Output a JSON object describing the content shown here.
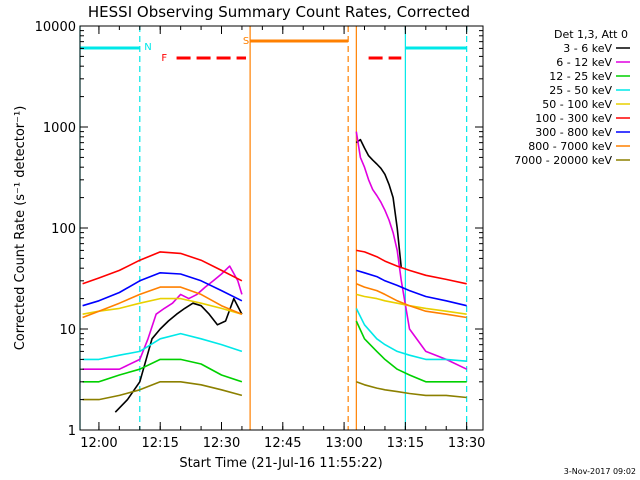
{
  "chart_data": {
    "type": "line",
    "title": "HESSI Observing Summary Count Rates, Corrected",
    "xlabel": "Start Time (21-Jul-16 11:55:22)",
    "ylabel": "Corrected Count Rate (s⁻¹ detector⁻¹)",
    "xaxis": {
      "start": "11:55:22",
      "end": "13:34:00",
      "ticks": [
        "12:00",
        "12:15",
        "12:30",
        "12:45",
        "13:00",
        "13:15",
        "13:30"
      ]
    },
    "yaxis": {
      "scale": "log",
      "ylim": [
        1,
        10000
      ],
      "ticks": [
        "1",
        "10",
        "100",
        "1000",
        "10000"
      ]
    },
    "legend": {
      "position": "right",
      "header": "Det 1,3, Att 0",
      "entries": [
        {
          "label": "3 - 6 keV",
          "color": "#000000"
        },
        {
          "label": "6 - 12 keV",
          "color": "#e000e0"
        },
        {
          "label": "12 - 25 keV",
          "color": "#00d000"
        },
        {
          "label": "25 - 50 keV",
          "color": "#00e8e8"
        },
        {
          "label": "50 - 100 keV",
          "color": "#e8d000"
        },
        {
          "label": "100 - 300 keV",
          "color": "#ff0000"
        },
        {
          "label": "300 - 800 keV",
          "color": "#0000ff"
        },
        {
          "label": "800 - 7000 keV",
          "color": "#ff8000"
        },
        {
          "label": "7000 - 20000 keV",
          "color": "#8c8000"
        }
      ]
    },
    "markers": {
      "N": "N",
      "F": "F",
      "S": "S"
    },
    "series": [
      {
        "name": "3 - 6 keV",
        "color": "#000000",
        "segments": [
          {
            "x": [
              "12:04",
              "12:07",
              "12:10",
              "12:13",
              "12:15",
              "12:17",
              "12:19",
              "12:21",
              "12:23",
              "12:25",
              "12:27",
              "12:29",
              "12:31",
              "12:33",
              "12:35"
            ],
            "y": [
              1.5,
              2,
              3,
              8,
              10,
              12,
              14,
              16,
              18,
              17,
              14,
              11,
              12,
              20,
              14
            ]
          },
          {
            "x": [
              "13:03",
              "13:04",
              "13:05",
              "13:06",
              "13:07",
              "13:08",
              "13:09",
              "13:10",
              "13:11",
              "13:12",
              "13:13",
              "13:14"
            ],
            "y": [
              700,
              750,
              620,
              520,
              470,
              430,
              390,
              340,
              270,
              200,
              100,
              40
            ]
          }
        ]
      },
      {
        "name": "6 - 12 keV",
        "color": "#e000e0",
        "segments": [
          {
            "x": [
              "11:56",
              "12:00",
              "12:05",
              "12:10",
              "12:12",
              "12:14",
              "12:16",
              "12:18",
              "12:20",
              "12:22",
              "12:24",
              "12:26",
              "12:28",
              "12:30",
              "12:32",
              "12:34",
              "12:35"
            ],
            "y": [
              4,
              4,
              4,
              5,
              8,
              14,
              16,
              18,
              22,
              20,
              22,
              26,
              30,
              35,
              42,
              30,
              22
            ]
          },
          {
            "x": [
              "13:03",
              "13:04",
              "13:05",
              "13:06",
              "13:07",
              "13:08",
              "13:09",
              "13:10",
              "13:11",
              "13:12",
              "13:13",
              "13:14",
              "13:16",
              "13:20",
              "13:25",
              "13:30"
            ],
            "y": [
              900,
              500,
              400,
              300,
              240,
              210,
              180,
              150,
              120,
              90,
              60,
              30,
              10,
              6,
              5,
              4
            ]
          }
        ]
      },
      {
        "name": "12 - 25 keV",
        "color": "#00d000",
        "segments": [
          {
            "x": [
              "11:56",
              "12:00",
              "12:05",
              "12:10",
              "12:15",
              "12:20",
              "12:25",
              "12:30",
              "12:35"
            ],
            "y": [
              3,
              3,
              3.5,
              4,
              5,
              5,
              4.5,
              3.5,
              3
            ]
          },
          {
            "x": [
              "13:03",
              "13:05",
              "13:08",
              "13:10",
              "13:13",
              "13:16",
              "13:20",
              "13:25",
              "13:30"
            ],
            "y": [
              12,
              8,
              6,
              5,
              4,
              3.5,
              3,
              3,
              3
            ]
          }
        ]
      },
      {
        "name": "25 - 50 keV",
        "color": "#00e8e8",
        "segments": [
          {
            "x": [
              "11:56",
              "12:00",
              "12:05",
              "12:10",
              "12:15",
              "12:20",
              "12:25",
              "12:30",
              "12:35"
            ],
            "y": [
              5,
              5,
              5.5,
              6,
              8,
              9,
              8,
              7,
              6
            ]
          },
          {
            "x": [
              "13:03",
              "13:05",
              "13:08",
              "13:10",
              "13:13",
              "13:16",
              "13:20",
              "13:25",
              "13:30"
            ],
            "y": [
              16,
              11,
              8,
              7,
              6,
              5.5,
              5,
              5,
              4.8
            ]
          }
        ]
      },
      {
        "name": "50 - 100 keV",
        "color": "#e8d000",
        "segments": [
          {
            "x": [
              "11:56",
              "12:00",
              "12:05",
              "12:10",
              "12:15",
              "12:20",
              "12:25",
              "12:30",
              "12:35"
            ],
            "y": [
              14,
              15,
              16,
              18,
              20,
              20,
              18,
              16,
              14
            ]
          },
          {
            "x": [
              "13:03",
              "13:05",
              "13:08",
              "13:10",
              "13:13",
              "13:16",
              "13:20",
              "13:25",
              "13:30"
            ],
            "y": [
              22,
              21,
              20,
              19,
              18,
              17,
              16,
              15,
              14
            ]
          }
        ]
      },
      {
        "name": "100 - 300 keV",
        "color": "#ff0000",
        "segments": [
          {
            "x": [
              "11:56",
              "12:00",
              "12:05",
              "12:10",
              "12:15",
              "12:20",
              "12:25",
              "12:30",
              "12:35"
            ],
            "y": [
              28,
              32,
              38,
              48,
              58,
              56,
              48,
              38,
              30
            ]
          },
          {
            "x": [
              "13:03",
              "13:05",
              "13:08",
              "13:10",
              "13:13",
              "13:16",
              "13:20",
              "13:25",
              "13:30"
            ],
            "y": [
              60,
              58,
              52,
              47,
              42,
              38,
              34,
              31,
              28
            ]
          }
        ]
      },
      {
        "name": "300 - 800 keV",
        "color": "#0000ff",
        "segments": [
          {
            "x": [
              "11:56",
              "12:00",
              "12:05",
              "12:10",
              "12:15",
              "12:20",
              "12:25",
              "12:30",
              "12:35"
            ],
            "y": [
              17,
              19,
              23,
              30,
              36,
              35,
              30,
              24,
              19
            ]
          },
          {
            "x": [
              "13:03",
              "13:05",
              "13:08",
              "13:10",
              "13:13",
              "13:16",
              "13:20",
              "13:25",
              "13:30"
            ],
            "y": [
              38,
              36,
              33,
              30,
              27,
              24,
              21,
              19,
              17
            ]
          }
        ]
      },
      {
        "name": "800 - 7000 keV",
        "color": "#ff8000",
        "segments": [
          {
            "x": [
              "11:56",
              "12:00",
              "12:05",
              "12:10",
              "12:15",
              "12:20",
              "12:25",
              "12:30",
              "12:35"
            ],
            "y": [
              13,
              15,
              18,
              22,
              26,
              26,
              22,
              17,
              14
            ]
          },
          {
            "x": [
              "13:03",
              "13:05",
              "13:08",
              "13:10",
              "13:13",
              "13:16",
              "13:20",
              "13:25",
              "13:30"
            ],
            "y": [
              28,
              26,
              24,
              22,
              19,
              17,
              15,
              14,
              13
            ]
          }
        ]
      },
      {
        "name": "7000 - 20000 keV",
        "color": "#8c8000",
        "segments": [
          {
            "x": [
              "11:56",
              "12:00",
              "12:05",
              "12:10",
              "12:15",
              "12:20",
              "12:25",
              "12:30",
              "12:35"
            ],
            "y": [
              2,
              2,
              2.2,
              2.5,
              3,
              3,
              2.8,
              2.5,
              2.2
            ]
          },
          {
            "x": [
              "13:03",
              "13:05",
              "13:08",
              "13:10",
              "13:13",
              "13:16",
              "13:20",
              "13:25",
              "13:30"
            ],
            "y": [
              3,
              2.8,
              2.6,
              2.5,
              2.4,
              2.3,
              2.2,
              2.2,
              2.1
            ]
          }
        ]
      }
    ],
    "state_bars": [
      {
        "label": "N",
        "color": "#00e8e8",
        "segments": [
          [
            "11:55:22",
            "12:10"
          ],
          [
            "13:15",
            "13:30"
          ]
        ]
      },
      {
        "label": "F",
        "color": "#ff0000",
        "dashed": true,
        "segments": [
          [
            "12:19",
            "12:36"
          ],
          [
            "13:06",
            "13:14"
          ]
        ]
      },
      {
        "label": "S",
        "color": "#ff8000",
        "segments": [
          [
            "12:37",
            "13:01"
          ]
        ]
      }
    ],
    "state_lines": [
      {
        "time": "11:55:22",
        "color": "#00e8e8",
        "style": "solid"
      },
      {
        "time": "12:10",
        "color": "#00e8e8",
        "style": "dashed"
      },
      {
        "time": "12:37",
        "color": "#ff8000",
        "style": "solid"
      },
      {
        "time": "13:01",
        "color": "#ff8000",
        "style": "dashed"
      },
      {
        "time": "13:03",
        "color": "#ff8000",
        "style": "solid"
      },
      {
        "time": "13:15",
        "color": "#00e8e8",
        "style": "solid"
      },
      {
        "time": "13:30",
        "color": "#00e8e8",
        "style": "dashed"
      }
    ]
  },
  "footer": {
    "timestamp": "3-Nov-2017 09:02"
  }
}
